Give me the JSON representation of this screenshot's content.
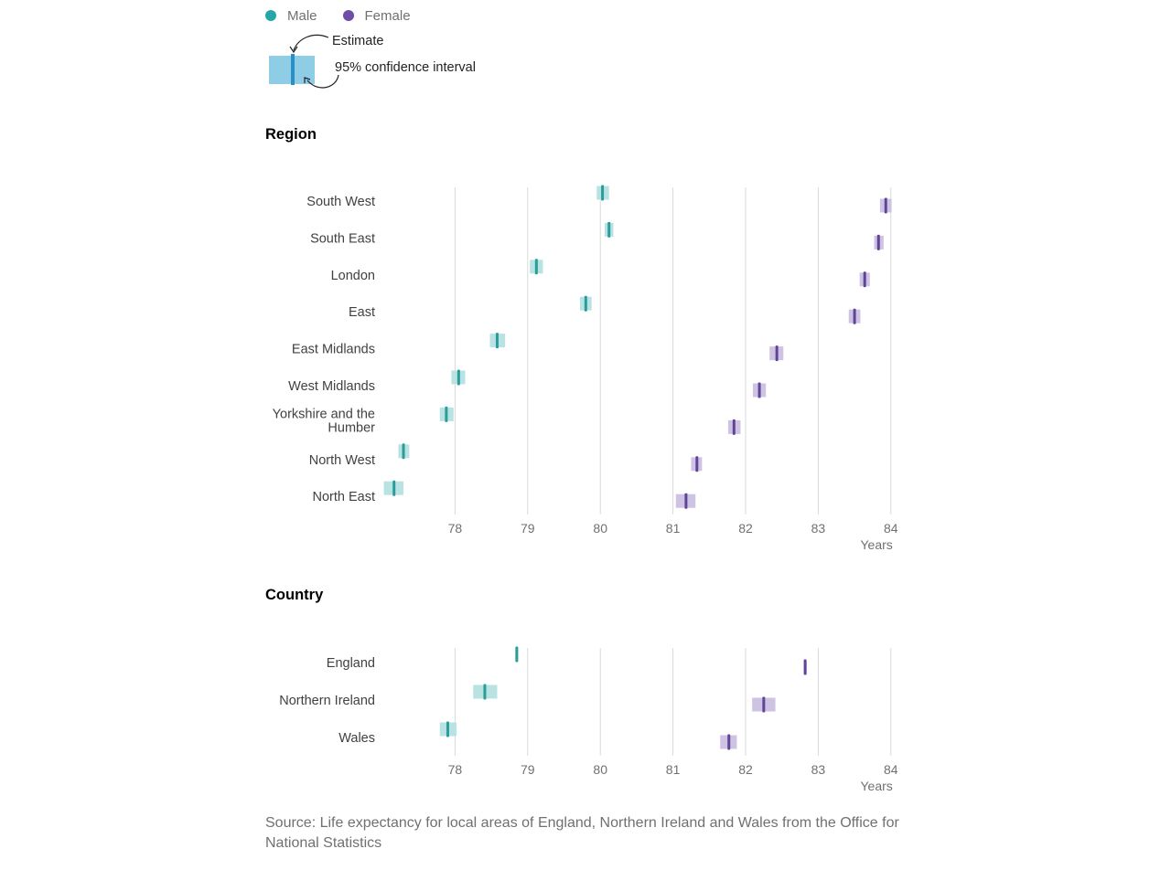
{
  "legend": {
    "items": [
      {
        "label": "Male",
        "color": "#26a6a6"
      },
      {
        "label": "Female",
        "color": "#6f4ea8"
      }
    ]
  },
  "key": {
    "estimate_label": "Estimate",
    "ci_label": "95% confidence interval",
    "box_color": "#8fcde6",
    "line_color": "#2b8fc6"
  },
  "colors": {
    "male_line": "#2a9d9a",
    "male_box": "#b9e3e3",
    "female_line": "#5f4595",
    "female_box": "#cfc3e4",
    "grid": "#d9d9d9"
  },
  "source": {
    "text": "Source: Life expectancy for local areas of England, Northern Ireland and Wales from the Office for National Statistics"
  },
  "chart_data": [
    {
      "type": "dot-with-confidence-interval",
      "title": "Region",
      "xlabel": "Years",
      "xlim": [
        77,
        84
      ],
      "xticks": [
        78,
        79,
        80,
        81,
        82,
        83,
        84
      ],
      "grid": true,
      "categories": [
        "South West",
        "South East",
        "London",
        "East",
        "East Midlands",
        "West Midlands",
        "Yorkshire and the Humber",
        "North West",
        "North East"
      ],
      "series": [
        {
          "name": "Male",
          "estimate": [
            80.03,
            80.12,
            79.12,
            79.8,
            78.58,
            78.05,
            77.88,
            77.29,
            77.16
          ],
          "ci_low": [
            79.95,
            80.06,
            79.03,
            79.72,
            78.48,
            77.95,
            77.79,
            77.22,
            77.02
          ],
          "ci_high": [
            80.12,
            80.18,
            79.21,
            79.88,
            78.69,
            78.14,
            77.98,
            77.37,
            77.29
          ]
        },
        {
          "name": "Female",
          "estimate": [
            83.93,
            83.83,
            83.64,
            83.5,
            82.43,
            82.19,
            81.84,
            81.33,
            81.18
          ],
          "ci_low": [
            83.85,
            83.77,
            83.57,
            83.42,
            82.33,
            82.1,
            81.76,
            81.25,
            81.04
          ],
          "ci_high": [
            84.01,
            83.9,
            83.71,
            83.58,
            82.52,
            82.28,
            81.93,
            81.4,
            81.31
          ]
        }
      ]
    },
    {
      "type": "dot-with-confidence-interval",
      "title": "Country",
      "xlabel": "Years",
      "xlim": [
        77,
        84
      ],
      "xticks": [
        78,
        79,
        80,
        81,
        82,
        83,
        84
      ],
      "grid": true,
      "categories": [
        "England",
        "Northern Ireland",
        "Wales"
      ],
      "series": [
        {
          "name": "Male",
          "estimate": [
            78.85,
            78.41,
            77.9
          ],
          "ci_low": [
            78.83,
            78.25,
            77.79
          ],
          "ci_high": [
            78.87,
            78.58,
            78.02
          ]
        },
        {
          "name": "Female",
          "estimate": [
            82.82,
            82.25,
            81.77
          ],
          "ci_low": [
            82.8,
            82.09,
            81.65
          ],
          "ci_high": [
            82.84,
            82.41,
            81.88
          ]
        }
      ]
    }
  ]
}
